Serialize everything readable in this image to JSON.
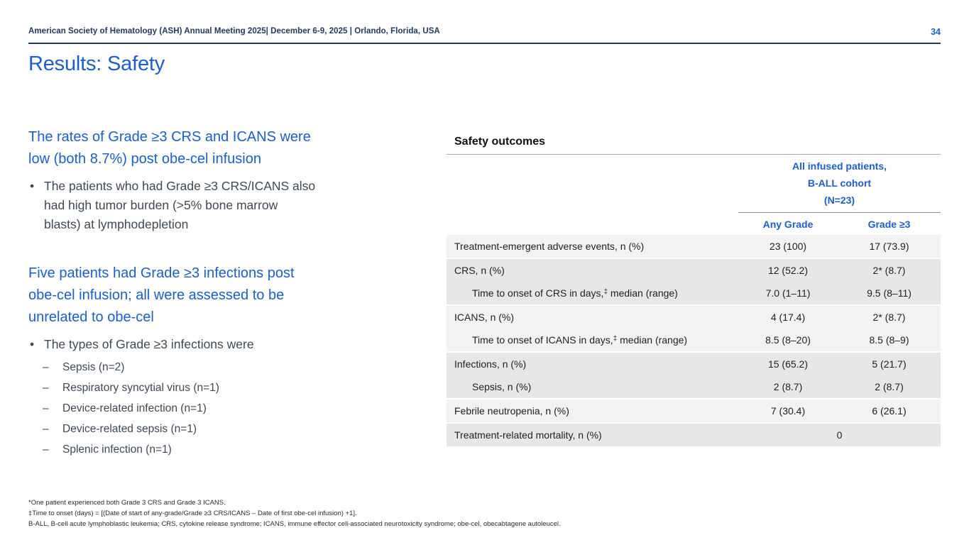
{
  "colors": {
    "accent": "#1A5FCD",
    "navy": "#203A60",
    "body-text": "#3E4856",
    "band-light": "#F2F2F3",
    "band-dark": "#E6E7E8"
  },
  "header": {
    "meeting_info": "American Society of Hematology (ASH) Annual Meeting 2025| December 6-9, 2025 | Orlando, Florida, USA",
    "page_number": "34"
  },
  "title": "Results: Safety",
  "left": {
    "section1": {
      "heading_lines": [
        "The rates of Grade ≥3 CRS and ICANS were",
        "low (both 8.7%) post obe-cel infusion"
      ],
      "bullet_lines": [
        "The patients who had Grade ≥3 CRS/ICANS also",
        "had high tumor burden (>5% bone marrow",
        "blasts) at lymphodepletion"
      ]
    },
    "section2": {
      "heading_lines": [
        "Five patients had Grade ≥3 infections post",
        "obe-cel infusion; all were assessed to be",
        "unrelated to obe-cel"
      ],
      "bullet_lines": [
        "The types of Grade ≥3 infections were"
      ],
      "sub_bullets": [
        "Sepsis (n=2)",
        "Respiratory syncytial virus (n=1)",
        "Device-related infection (n=1)",
        "Device-related sepsis (n=1)",
        "Splenic infection (n=1)"
      ]
    }
  },
  "table": {
    "title": "Safety outcomes",
    "spanner_lines": [
      "All infused patients,",
      "B-ALL cohort",
      "(N=23)"
    ],
    "columns": [
      "Any Grade",
      "Grade ≥3"
    ],
    "rows": [
      {
        "label": "Treatment-emergent adverse events, n (%)",
        "any_grade": "23 (100)",
        "grade3": "17 (73.9)",
        "shade": "light",
        "indent": false,
        "gap_after": true
      },
      {
        "label": "CRS, n (%)",
        "any_grade": "12 (52.2)",
        "grade3": "2* (8.7)",
        "shade": "dark",
        "indent": false,
        "gap_after": false
      },
      {
        "label": "Time to onset of CRS in days,",
        "label_sup": "‡",
        "label_post": " median (range)",
        "any_grade": "7.0 (1–11)",
        "grade3": "9.5 (8–11)",
        "shade": "dark",
        "indent": true,
        "gap_after": true
      },
      {
        "label": "ICANS, n (%)",
        "any_grade": "4 (17.4)",
        "grade3": "2* (8.7)",
        "shade": "light",
        "indent": false,
        "gap_after": false
      },
      {
        "label": "Time to onset of ICANS in days,",
        "label_sup": "‡",
        "label_post": " median (range)",
        "any_grade": "8.5 (8–20)",
        "grade3": "8.5 (8–9)",
        "shade": "light",
        "indent": true,
        "gap_after": true
      },
      {
        "label": "Infections, n (%)",
        "any_grade": "15 (65.2)",
        "grade3": "5 (21.7)",
        "shade": "dark",
        "indent": false,
        "gap_after": false
      },
      {
        "label": "Sepsis, n (%)",
        "any_grade": "2 (8.7)",
        "grade3": "2 (8.7)",
        "shade": "dark",
        "indent": true,
        "gap_after": true
      },
      {
        "label": "Febrile neutropenia, n (%)",
        "any_grade": "7 (30.4)",
        "grade3": "6 (26.1)",
        "shade": "light",
        "indent": false,
        "gap_after": true
      },
      {
        "label": "Treatment-related mortality, n (%)",
        "merged": "0",
        "shade": "dark",
        "indent": false,
        "gap_after": false
      }
    ]
  },
  "footnotes": [
    "*One patient experienced both Grade 3 CRS and Grade 3 ICANS.",
    "‡Time to onset (days) = [(Date of start of any-grade/Grade ≥3 CRS/ICANS – Date of first obe-cel infusion) +1].",
    "B-ALL, B-cell acute lymphoblastic leukemia; CRS, cytokine release syndrome; ICANS, immune effector cell-associated neurotoxicity syndrome; obe-cel, obecabtagene autoleucel."
  ]
}
